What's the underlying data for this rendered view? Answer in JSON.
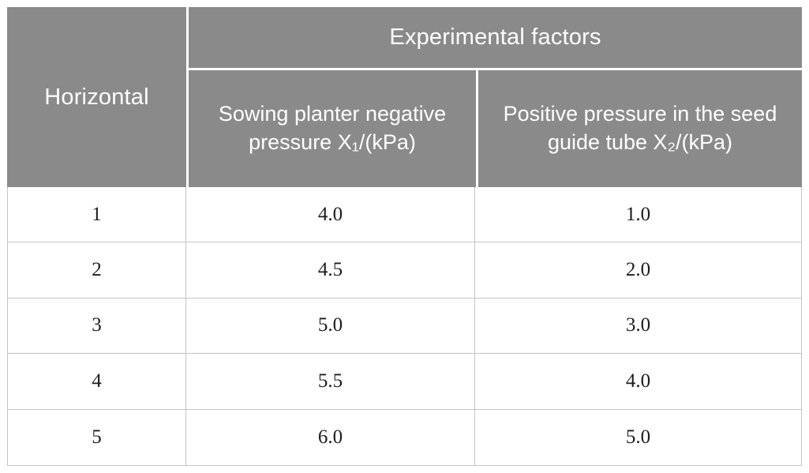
{
  "chart_data": {
    "type": "table",
    "corner_header": "Horizontal",
    "group_header": "Experimental factors",
    "column_headers": [
      "Sowing planter negative pressure X₁/(kPa)",
      "Positive pressure in the seed guide tube X₂/(kPa)"
    ],
    "rows": [
      [
        "1",
        "4.0",
        "1.0"
      ],
      [
        "2",
        "4.5",
        "2.0"
      ],
      [
        "3",
        "5.0",
        "3.0"
      ],
      [
        "4",
        "5.5",
        "4.0"
      ],
      [
        "5",
        "6.0",
        "5.0"
      ]
    ]
  },
  "colors": {
    "header_background": "#8a8a8a",
    "header_text": "#ffffff",
    "grid_line": "#c4c4c4",
    "body_text": "#1c1c1c",
    "page_background": "#ffffff"
  }
}
